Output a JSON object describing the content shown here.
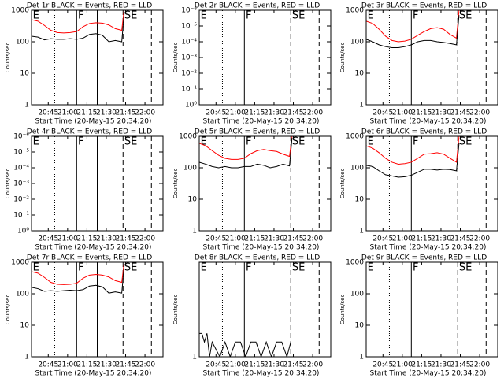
{
  "chart_data": [
    {
      "type": "line",
      "title": "Det 1r BLACK = Events, RED = LLD",
      "xlabel": "Start Time (20-May-15 20:34:20)",
      "ylabel": "Counts/sec",
      "log_y": true,
      "xlim": [
        "20:32",
        "22:14"
      ],
      "xticks": [
        "20:45",
        "21:00",
        "21:15",
        "21:30",
        "21:45",
        "22:00"
      ],
      "ylim": [
        1,
        1000
      ],
      "yticks": [
        1,
        10,
        100,
        1000
      ],
      "vlines": [
        {
          "x": "20:50",
          "style": "dotted"
        },
        {
          "x": "21:07",
          "style": "solid"
        },
        {
          "x": "21:23",
          "style": "solid"
        },
        {
          "x": "21:43",
          "style": "dashed"
        },
        {
          "x": "22:05",
          "style": "dashed"
        }
      ],
      "phase_labels": [
        {
          "text": "E",
          "x": "20:33"
        },
        {
          "text": "F",
          "x": "21:08"
        },
        {
          "text": "SE",
          "x": "21:44"
        }
      ],
      "x": [
        "20:32",
        "20:37",
        "20:42",
        "20:47",
        "20:52",
        "20:57",
        "21:02",
        "21:07",
        "21:12",
        "21:17",
        "21:22",
        "21:27",
        "21:32",
        "21:37",
        "21:42",
        "21:44"
      ],
      "series": [
        {
          "color": "#ff0000",
          "values": [
            500,
            450,
            330,
            230,
            195,
            190,
            195,
            210,
            300,
            380,
            400,
            390,
            340,
            260,
            230,
            1200
          ]
        },
        {
          "color": "#000000",
          "values": [
            150,
            140,
            115,
            125,
            120,
            120,
            125,
            120,
            130,
            170,
            180,
            160,
            100,
            110,
            100,
            900
          ]
        }
      ]
    },
    {
      "type": "line",
      "title": "Det 2r BLACK = Events, RED = LLD",
      "xlabel": "Start Time (20-May-15 20:34:20)",
      "ylabel": "Counts/sec",
      "log_y": true,
      "xlim": [
        "20:32",
        "22:14"
      ],
      "xticks": [
        "20:45",
        "21:00",
        "21:15",
        "21:30",
        "21:45",
        "22:00"
      ],
      "ylim": [
        1,
        1e-06
      ],
      "yticks": [
        {
          "value": 1,
          "label": "10⁰"
        },
        {
          "value": 0.1,
          "label": "10⁻¹"
        },
        {
          "value": 0.01,
          "label": "10⁻²"
        },
        {
          "value": 0.001,
          "label": "10⁻³"
        },
        {
          "value": 0.0001,
          "label": "10⁻⁴"
        },
        {
          "value": 1e-05,
          "label": "10⁻⁵"
        },
        {
          "value": 1e-06,
          "label": "10⁻⁶"
        }
      ],
      "vlines": [
        {
          "x": "20:50",
          "style": "dotted"
        },
        {
          "x": "21:07",
          "style": "solid"
        },
        {
          "x": "21:23",
          "style": "solid"
        },
        {
          "x": "21:43",
          "style": "dashed"
        },
        {
          "x": "22:05",
          "style": "dashed"
        }
      ],
      "phase_labels": [
        {
          "text": "E",
          "x": "20:33"
        },
        {
          "text": "F",
          "x": "21:08"
        },
        {
          "text": "SE",
          "x": "21:44"
        }
      ],
      "x": [],
      "series": []
    },
    {
      "type": "line",
      "title": "Det 3r BLACK = Events, RED = LLD",
      "xlabel": "Start Time (20-May-15 20:34:20)",
      "ylabel": "Counts/sec",
      "log_y": true,
      "xlim": [
        "20:32",
        "22:14"
      ],
      "xticks": [
        "20:45",
        "21:00",
        "21:15",
        "21:30",
        "21:45",
        "22:00"
      ],
      "ylim": [
        1,
        1000
      ],
      "yticks": [
        1,
        10,
        100,
        1000
      ],
      "vlines": [
        {
          "x": "20:50",
          "style": "dotted"
        },
        {
          "x": "21:07",
          "style": "solid"
        },
        {
          "x": "21:23",
          "style": "solid"
        },
        {
          "x": "21:43",
          "style": "dashed"
        },
        {
          "x": "22:05",
          "style": "dashed"
        }
      ],
      "phase_labels": [
        {
          "text": "E",
          "x": "20:33"
        },
        {
          "text": "F",
          "x": "21:08"
        },
        {
          "text": "SE",
          "x": "21:44"
        }
      ],
      "x": [
        "20:32",
        "20:37",
        "20:42",
        "20:47",
        "20:52",
        "20:57",
        "21:02",
        "21:07",
        "21:12",
        "21:17",
        "21:22",
        "21:27",
        "21:32",
        "21:37",
        "21:42",
        "21:44"
      ],
      "series": [
        {
          "color": "#ff0000",
          "values": [
            450,
            380,
            250,
            150,
            110,
            100,
            105,
            120,
            160,
            210,
            260,
            280,
            250,
            170,
            130,
            1000
          ]
        },
        {
          "color": "#000000",
          "values": [
            120,
            100,
            80,
            70,
            65,
            65,
            70,
            80,
            100,
            110,
            110,
            100,
            95,
            88,
            80,
            700
          ]
        }
      ]
    },
    {
      "type": "line",
      "title": "Det 4r BLACK = Events, RED = LLD",
      "xlabel": "Start Time (20-May-15 20:34:20)",
      "ylabel": "Counts/sec",
      "log_y": true,
      "xlim": [
        "20:32",
        "22:14"
      ],
      "xticks": [
        "20:45",
        "21:00",
        "21:15",
        "21:30",
        "21:45",
        "22:00"
      ],
      "ylim": [
        1,
        1e-06
      ],
      "yticks": [
        {
          "value": 1,
          "label": "10⁰"
        },
        {
          "value": 0.1,
          "label": "10⁻¹"
        },
        {
          "value": 0.01,
          "label": "10⁻²"
        },
        {
          "value": 0.001,
          "label": "10⁻³"
        },
        {
          "value": 0.0001,
          "label": "10⁻⁴"
        },
        {
          "value": 1e-05,
          "label": "10⁻⁵"
        },
        {
          "value": 1e-06,
          "label": "10⁻⁶"
        }
      ],
      "vlines": [
        {
          "x": "20:50",
          "style": "dotted"
        },
        {
          "x": "21:07",
          "style": "solid"
        },
        {
          "x": "21:23",
          "style": "solid"
        },
        {
          "x": "21:43",
          "style": "dashed"
        },
        {
          "x": "22:05",
          "style": "dashed"
        }
      ],
      "phase_labels": [
        {
          "text": "E",
          "x": "20:33"
        },
        {
          "text": "F",
          "x": "21:08"
        },
        {
          "text": "SE",
          "x": "21:44"
        }
      ],
      "x": [],
      "series": []
    },
    {
      "type": "line",
      "title": "Det 5r BLACK = Events, RED = LLD",
      "xlabel": "Start Time (20-May-15 20:34:20)",
      "ylabel": "Counts/sec",
      "log_y": true,
      "xlim": [
        "20:32",
        "22:14"
      ],
      "xticks": [
        "20:45",
        "21:00",
        "21:15",
        "21:30",
        "21:45",
        "22:00"
      ],
      "ylim": [
        1,
        1000
      ],
      "yticks": [
        1,
        10,
        100,
        1000
      ],
      "vlines": [
        {
          "x": "20:50",
          "style": "dotted"
        },
        {
          "x": "21:07",
          "style": "solid"
        },
        {
          "x": "21:23",
          "style": "solid"
        },
        {
          "x": "21:43",
          "style": "dashed"
        },
        {
          "x": "22:05",
          "style": "dashed"
        }
      ],
      "phase_labels": [
        {
          "text": "E",
          "x": "20:33"
        },
        {
          "text": "F",
          "x": "21:08"
        },
        {
          "text": "SE",
          "x": "21:44"
        }
      ],
      "x": [
        "20:32",
        "20:37",
        "20:42",
        "20:47",
        "20:52",
        "20:57",
        "21:02",
        "21:07",
        "21:12",
        "21:17",
        "21:22",
        "21:27",
        "21:32",
        "21:37",
        "21:42",
        "21:44"
      ],
      "series": [
        {
          "color": "#ff0000",
          "values": [
            600,
            500,
            350,
            250,
            200,
            185,
            185,
            200,
            280,
            350,
            380,
            350,
            330,
            270,
            230,
            1000
          ]
        },
        {
          "color": "#000000",
          "values": [
            150,
            130,
            110,
            100,
            110,
            100,
            100,
            110,
            110,
            130,
            120,
            100,
            110,
            130,
            115,
            900
          ]
        }
      ]
    },
    {
      "type": "line",
      "title": "Det 6r BLACK = Events, RED = LLD",
      "xlabel": "Start Time (20-May-15 20:34:20)",
      "ylabel": "Counts/sec",
      "log_y": true,
      "xlim": [
        "20:32",
        "22:14"
      ],
      "xticks": [
        "20:45",
        "21:00",
        "21:15",
        "21:30",
        "21:45",
        "22:00"
      ],
      "ylim": [
        1,
        1000
      ],
      "yticks": [
        1,
        10,
        100,
        1000
      ],
      "vlines": [
        {
          "x": "20:50",
          "style": "dotted"
        },
        {
          "x": "21:07",
          "style": "solid"
        },
        {
          "x": "21:23",
          "style": "solid"
        },
        {
          "x": "21:43",
          "style": "dashed"
        },
        {
          "x": "22:05",
          "style": "dashed"
        }
      ],
      "phase_labels": [
        {
          "text": "E",
          "x": "20:33"
        },
        {
          "text": "F",
          "x": "21:08"
        },
        {
          "text": "SE",
          "x": "21:44"
        }
      ],
      "x": [
        "20:32",
        "20:37",
        "20:42",
        "20:47",
        "20:52",
        "20:57",
        "21:02",
        "21:07",
        "21:12",
        "21:17",
        "21:22",
        "21:27",
        "21:32",
        "21:37",
        "21:42",
        "21:44"
      ],
      "series": [
        {
          "color": "#ff0000",
          "values": [
            500,
            420,
            300,
            200,
            150,
            130,
            135,
            150,
            200,
            270,
            280,
            300,
            270,
            200,
            150,
            1000
          ]
        },
        {
          "color": "#000000",
          "values": [
            120,
            110,
            80,
            60,
            55,
            50,
            52,
            58,
            72,
            90,
            90,
            85,
            90,
            88,
            80,
            600
          ]
        }
      ]
    },
    {
      "type": "line",
      "title": "Det 7r BLACK = Events, RED = LLD",
      "xlabel": "Start Time (20-May-15 20:34:20)",
      "ylabel": "Counts/sec",
      "log_y": true,
      "xlim": [
        "20:32",
        "22:14"
      ],
      "xticks": [
        "20:45",
        "21:00",
        "21:15",
        "21:30",
        "21:45",
        "22:00"
      ],
      "ylim": [
        1,
        1000
      ],
      "yticks": [
        1,
        10,
        100,
        1000
      ],
      "vlines": [
        {
          "x": "20:50",
          "style": "dotted"
        },
        {
          "x": "21:07",
          "style": "solid"
        },
        {
          "x": "21:23",
          "style": "solid"
        },
        {
          "x": "21:43",
          "style": "dashed"
        },
        {
          "x": "22:05",
          "style": "dashed"
        }
      ],
      "phase_labels": [
        {
          "text": "E",
          "x": "20:33"
        },
        {
          "text": "F",
          "x": "21:08"
        },
        {
          "text": "SE",
          "x": "21:44"
        }
      ],
      "x": [
        "20:32",
        "20:37",
        "20:42",
        "20:47",
        "20:52",
        "20:57",
        "21:02",
        "21:07",
        "21:12",
        "21:17",
        "21:22",
        "21:27",
        "21:32",
        "21:37",
        "21:42",
        "21:44"
      ],
      "series": [
        {
          "color": "#ff0000",
          "values": [
            500,
            450,
            330,
            230,
            200,
            195,
            200,
            215,
            310,
            390,
            410,
            390,
            340,
            260,
            230,
            1100
          ]
        },
        {
          "color": "#000000",
          "values": [
            160,
            145,
            120,
            125,
            120,
            125,
            130,
            125,
            135,
            175,
            185,
            165,
            105,
            115,
            105,
            900
          ]
        }
      ]
    },
    {
      "type": "line",
      "title": "Det 8r BLACK = Events, RED = LLD",
      "xlabel": "Start Time (20-May-15 20:34:20)",
      "ylabel": "Counts/sec",
      "log_y": true,
      "xlim": [
        "20:32",
        "22:14"
      ],
      "xticks": [
        "20:45",
        "21:00",
        "21:15",
        "21:30",
        "21:45",
        "22:00"
      ],
      "ylim": [
        1,
        85
      ],
      "yticks": [
        1
      ],
      "vlines": [
        {
          "x": "20:50",
          "style": "dotted"
        },
        {
          "x": "21:07",
          "style": "solid"
        },
        {
          "x": "21:23",
          "style": "solid"
        },
        {
          "x": "21:43",
          "style": "dashed"
        },
        {
          "x": "22:05",
          "style": "dashed"
        }
      ],
      "phase_labels": [
        {
          "text": "E",
          "x": "20:33"
        },
        {
          "text": "F",
          "x": "21:08"
        },
        {
          "text": "SE",
          "x": "21:44"
        }
      ],
      "x": [
        "20:32",
        "20:34",
        "20:36",
        "20:38",
        "20:40",
        "20:42",
        "20:48",
        "20:52",
        "20:56",
        "21:00",
        "21:04",
        "21:08",
        "21:12",
        "21:16",
        "21:20",
        "21:24",
        "21:28",
        "21:32",
        "21:36",
        "21:40",
        "21:43"
      ],
      "series": [
        {
          "color": "#000000",
          "values": [
            3,
            3,
            2,
            3,
            1,
            2,
            1,
            2,
            1,
            2,
            2,
            1,
            2,
            2,
            1,
            2,
            1,
            2,
            2,
            1,
            2
          ]
        }
      ]
    },
    {
      "type": "line",
      "title": "Det 9r BLACK = Events, RED = LLD",
      "xlabel": "Start Time (20-May-15 20:34:20)",
      "ylabel": "Counts/sec",
      "log_y": true,
      "xlim": [
        "20:32",
        "22:14"
      ],
      "xticks": [
        "20:45",
        "21:00",
        "21:15",
        "21:30",
        "21:45",
        "22:00"
      ],
      "ylim": [
        1,
        1000
      ],
      "yticks": [
        1,
        10,
        100,
        1000
      ],
      "vlines": [
        {
          "x": "20:50",
          "style": "dotted"
        },
        {
          "x": "21:07",
          "style": "solid"
        },
        {
          "x": "21:23",
          "style": "solid"
        },
        {
          "x": "21:43",
          "style": "dashed"
        },
        {
          "x": "22:05",
          "style": "dashed"
        }
      ],
      "phase_labels": [
        {
          "text": "E",
          "x": "20:33"
        },
        {
          "text": "F",
          "x": "21:08"
        },
        {
          "text": "SE",
          "x": "21:44"
        }
      ],
      "x": [],
      "series": []
    }
  ]
}
